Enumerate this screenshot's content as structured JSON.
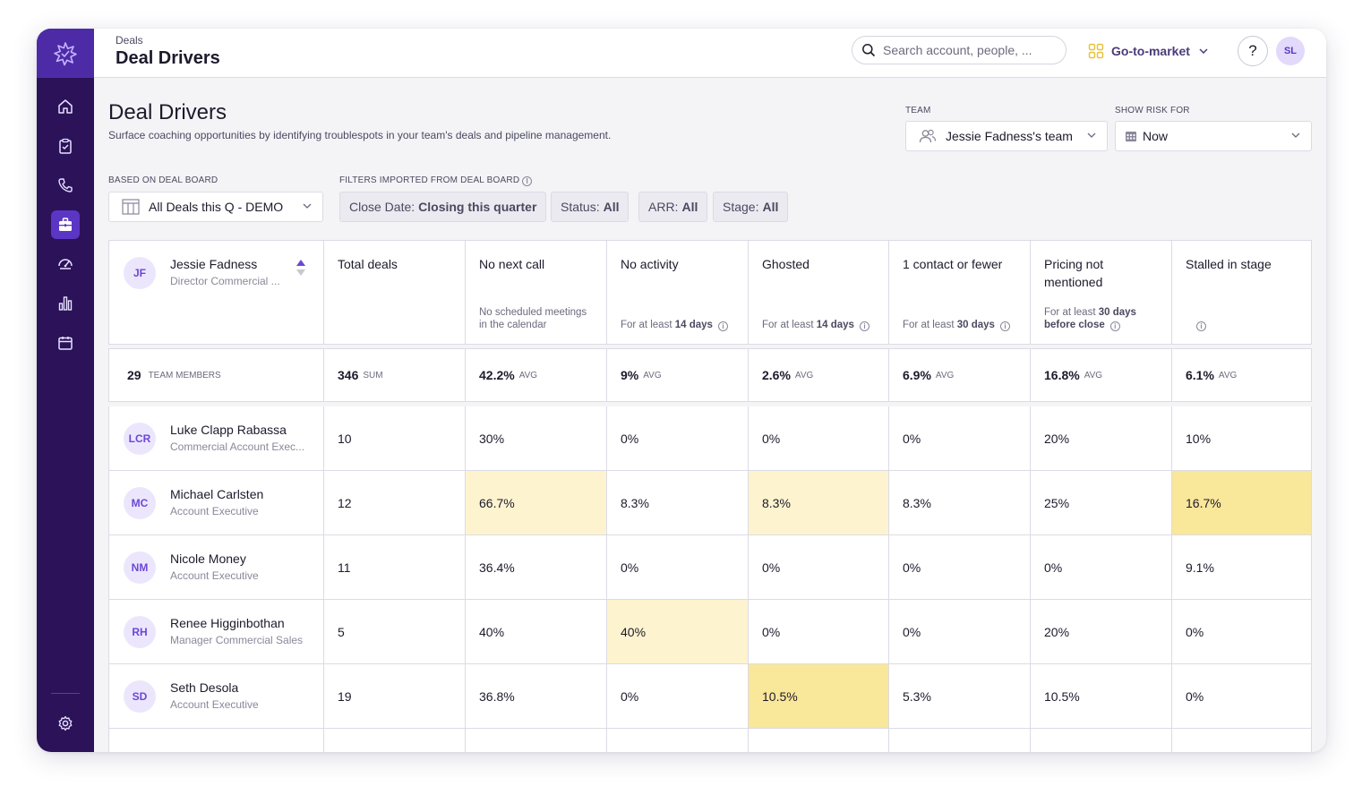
{
  "header": {
    "breadcrumb": "Deals",
    "title": "Deal Drivers",
    "search_placeholder": "Search account, people, ...",
    "workspace_label": "Go-to-market",
    "help_label": "?",
    "user_initials": "SL"
  },
  "sidebar": {
    "items": [
      {
        "icon": "home-icon"
      },
      {
        "icon": "clipboard-icon"
      },
      {
        "icon": "phone-icon"
      },
      {
        "icon": "briefcase-icon",
        "active": true
      },
      {
        "icon": "gauge-icon"
      },
      {
        "icon": "bar-chart-icon"
      },
      {
        "icon": "calendar-icon"
      }
    ],
    "bottom_icon": "gear-icon"
  },
  "page": {
    "title": "Deal Drivers",
    "subtitle": "Surface coaching opportunities by identifying troublespots in your team's deals and pipeline management.",
    "team_label": "TEAM",
    "team_value": "Jessie Fadness's team",
    "risk_label": "SHOW RISK FOR",
    "risk_value": "Now",
    "deal_board_label": "BASED ON DEAL BOARD",
    "deal_board_value": "All Deals this Q - DEMO",
    "filters_label": "FILTERS IMPORTED FROM DEAL BOARD",
    "filters": [
      {
        "key": "Close Date:",
        "value": "Closing this quarter"
      },
      {
        "key": "Status:",
        "value": "All"
      },
      {
        "key": "ARR:",
        "value": "All"
      },
      {
        "key": "Stage:",
        "value": "All"
      }
    ]
  },
  "table": {
    "manager": {
      "initials": "JF",
      "name": "Jessie Fadness",
      "role": "Director Commercial ..."
    },
    "columns": [
      {
        "label": "Total deals",
        "desc_pre": "",
        "desc_bold": "",
        "desc_post": "",
        "info": false
      },
      {
        "label": "No next call",
        "desc_pre": "No scheduled meetings in the calendar",
        "desc_bold": "",
        "desc_post": "",
        "info": false
      },
      {
        "label": "No activity",
        "desc_pre": "For at least ",
        "desc_bold": "14",
        "desc_post": " days",
        "info": true
      },
      {
        "label": "Ghosted",
        "desc_pre": "For at least ",
        "desc_bold": "14",
        "desc_post": " days",
        "info": true
      },
      {
        "label": "1 contact or fewer",
        "desc_pre": "For at least ",
        "desc_bold": "30",
        "desc_post": " days",
        "info": true
      },
      {
        "label": "Pricing not mentioned",
        "desc_pre": "For at least ",
        "desc_bold": "30 days",
        "desc_post": " before close",
        "info": true
      },
      {
        "label": "Stalled in stage",
        "desc_pre": "",
        "desc_bold": "",
        "desc_post": "",
        "info": true
      }
    ],
    "summary": {
      "members_count": "29",
      "members_label": "TEAM MEMBERS",
      "values": [
        {
          "value": "346",
          "unit": "SUM"
        },
        {
          "value": "42.2%",
          "unit": "AVG"
        },
        {
          "value": "9%",
          "unit": "AVG"
        },
        {
          "value": "2.6%",
          "unit": "AVG"
        },
        {
          "value": "6.9%",
          "unit": "AVG"
        },
        {
          "value": "16.8%",
          "unit": "AVG"
        },
        {
          "value": "6.1%",
          "unit": "AVG"
        }
      ]
    },
    "rows": [
      {
        "initials": "LCR",
        "name": "Luke Clapp Rabassa",
        "role": "Commercial Account Exec...",
        "values": [
          "10",
          "30%",
          "0%",
          "0%",
          "0%",
          "20%",
          "10%"
        ],
        "highlight": [
          "",
          "",
          "",
          "",
          "",
          "",
          ""
        ]
      },
      {
        "initials": "MC",
        "name": "Michael Carlsten",
        "role": "Account Executive",
        "values": [
          "12",
          "66.7%",
          "8.3%",
          "8.3%",
          "8.3%",
          "25%",
          "16.7%"
        ],
        "highlight": [
          "",
          "light",
          "",
          "light",
          "",
          "",
          "mid"
        ]
      },
      {
        "initials": "NM",
        "name": "Nicole Money",
        "role": "Account Executive",
        "values": [
          "11",
          "36.4%",
          "0%",
          "0%",
          "0%",
          "0%",
          "9.1%"
        ],
        "highlight": [
          "",
          "",
          "",
          "",
          "",
          "",
          ""
        ]
      },
      {
        "initials": "RH",
        "name": "Renee Higginbothan",
        "role": "Manager Commercial Sales",
        "values": [
          "5",
          "40%",
          "40%",
          "0%",
          "0%",
          "20%",
          "0%"
        ],
        "highlight": [
          "",
          "",
          "light",
          "",
          "",
          "",
          ""
        ]
      },
      {
        "initials": "SD",
        "name": "Seth Desola",
        "role": "Account Executive",
        "values": [
          "19",
          "36.8%",
          "0%",
          "10.5%",
          "5.3%",
          "10.5%",
          "0%"
        ],
        "highlight": [
          "",
          "",
          "",
          "mid",
          "",
          "",
          ""
        ]
      }
    ]
  }
}
